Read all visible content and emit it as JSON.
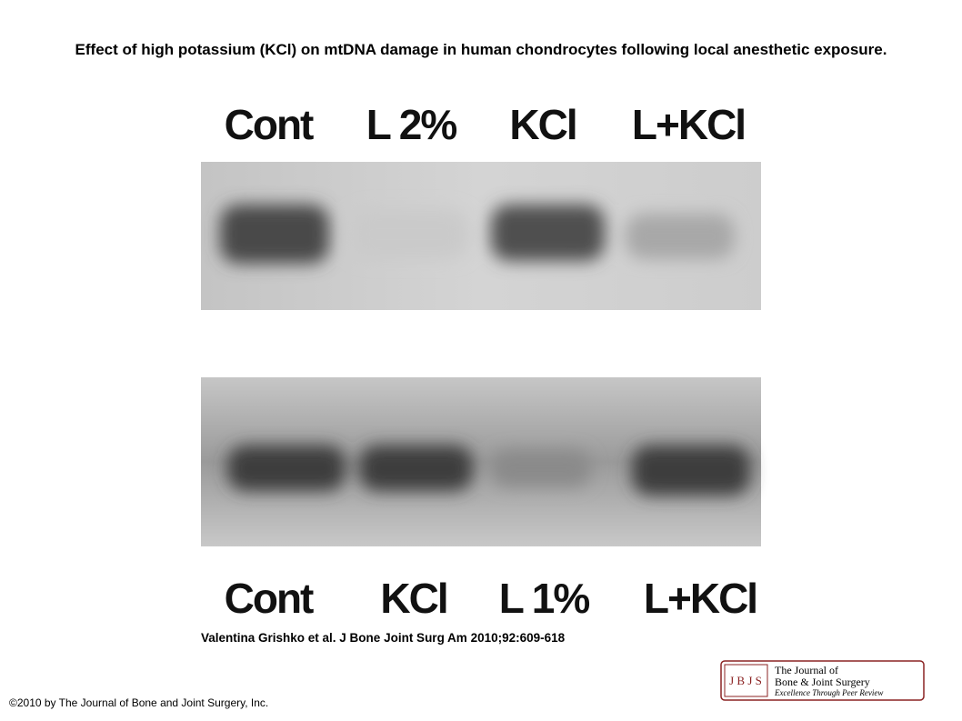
{
  "header": {
    "title": "Effect of high potassium (KCl) on mtDNA damage in human chondrocytes following local anesthetic exposure."
  },
  "figure": {
    "top_lanes": [
      "Cont",
      "L 2%",
      "KCl",
      "L+KCl"
    ],
    "bottom_lanes": [
      "Cont",
      "KCl",
      "L 1%",
      "L+KCl"
    ]
  },
  "citation": "Valentina Grishko et al. J Bone Joint Surg Am 2010;92:609-618",
  "copyright": "©2010 by The Journal of Bone and Joint Surgery, Inc.",
  "logo": {
    "abbr": "J B J S",
    "line1": "The Journal of",
    "line2": "Bone & Joint Surgery",
    "tagline": "Excellence Through Peer Review"
  }
}
